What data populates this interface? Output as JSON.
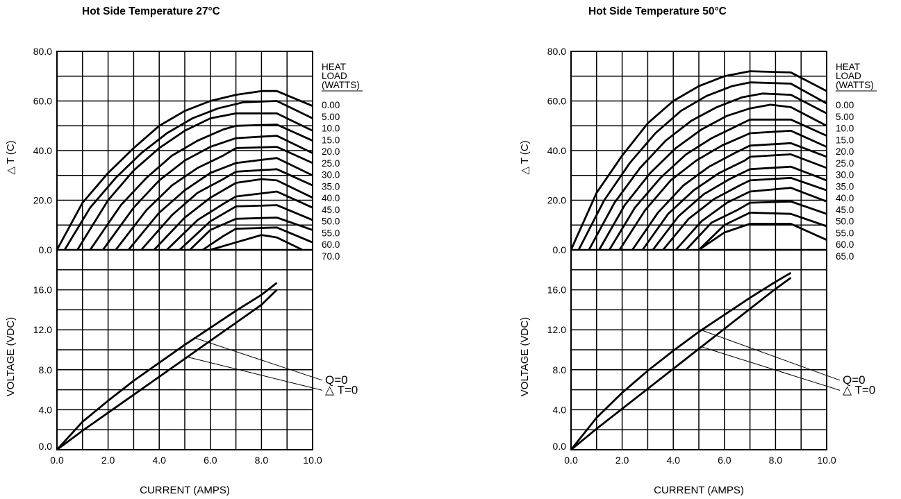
{
  "chart_data": [
    {
      "type": "line",
      "title": "Hot Side Temperature 27°C",
      "xlabel": "CURRENT (AMPS)",
      "x_ticks": [
        "0.0",
        "2.0",
        "4.0",
        "6.0",
        "8.0",
        "10.0"
      ],
      "xlim": [
        0,
        10
      ],
      "grid": true,
      "dt_panel": {
        "ylabel": "△ T (C)",
        "ylim": [
          0,
          80
        ],
        "y_ticks": [
          "0.0",
          "20.0",
          "40.0",
          "60.0",
          "80.0"
        ],
        "legend_header": [
          "HEAT",
          "LOAD",
          "(WATTS)"
        ],
        "series": [
          {
            "name": "0.00",
            "x": [
              0,
              1,
              2,
              3,
              4,
              5,
              6,
              7,
              8,
              8.6,
              10
            ],
            "y": [
              0,
              19,
              31,
              41,
              50,
              56,
              60,
              62.5,
              64,
              64,
              58
            ]
          },
          {
            "name": "5.00",
            "x": [
              0.3,
              1.3,
              2.3,
              3.3,
              4.3,
              5.3,
              6.3,
              7.3,
              8.6,
              10
            ],
            "y": [
              0,
              17,
              29,
              39,
              47,
              53,
              57,
              59.5,
              60,
              53
            ]
          },
          {
            "name": "10.0",
            "x": [
              0.8,
              2,
              3,
              4,
              5,
              6,
              7,
              8.6,
              10
            ],
            "y": [
              0,
              20,
              32,
              41,
              48,
              53,
              55,
              55,
              48
            ]
          },
          {
            "name": "15.0",
            "x": [
              1.3,
              2.5,
              3.5,
              4.5,
              5.5,
              6.5,
              7,
              8.6,
              10
            ],
            "y": [
              0,
              18,
              29,
              38,
              44,
              48.5,
              50,
              50.5,
              44
            ]
          },
          {
            "name": "20.0",
            "x": [
              1.8,
              3,
              4,
              5,
              6,
              7,
              8.6,
              10
            ],
            "y": [
              0,
              17,
              28,
              36,
              41.5,
              45,
              46,
              39
            ]
          },
          {
            "name": "25.0",
            "x": [
              2.3,
              3.5,
              4.5,
              5.5,
              6.5,
              7,
              8.6,
              10
            ],
            "y": [
              0,
              16,
              26,
              33,
              38,
              41,
              41.5,
              35
            ]
          },
          {
            "name": "30.0",
            "x": [
              2.8,
              4,
              5,
              6,
              7,
              8.6,
              10
            ],
            "y": [
              0,
              15,
              24,
              31,
              35,
              37,
              30
            ]
          },
          {
            "name": "35.0",
            "x": [
              3.3,
              4.5,
              5.5,
              6.5,
              7,
              8.6,
              10
            ],
            "y": [
              0,
              14,
              23,
              28.5,
              31.5,
              32.5,
              26
            ]
          },
          {
            "name": "40.0",
            "x": [
              3.8,
              5,
              6,
              7,
              8,
              8.6,
              10
            ],
            "y": [
              0,
              13,
              21,
              27,
              28.5,
              28,
              21
            ]
          },
          {
            "name": "45.0",
            "x": [
              4.3,
              5.5,
              6.5,
              7,
              8.6,
              10
            ],
            "y": [
              0,
              12,
              18.5,
              21.5,
              23.5,
              17
            ]
          },
          {
            "name": "50.0",
            "x": [
              4.8,
              6,
              7,
              8.6,
              10
            ],
            "y": [
              0,
              11.5,
              17.5,
              18,
              12
            ]
          },
          {
            "name": "55.0",
            "x": [
              5.2,
              6,
              7,
              8.6,
              10
            ],
            "y": [
              0,
              8,
              12.5,
              13,
              8
            ]
          },
          {
            "name": "60.0",
            "x": [
              5.7,
              6.5,
              7,
              8.6,
              10
            ],
            "y": [
              0,
              5.5,
              8.5,
              9,
              3
            ]
          },
          {
            "name": "70.0",
            "x": [
              6,
              7,
              8,
              8.6,
              9.6
            ],
            "y": [
              0,
              3,
              6,
              5,
              0
            ]
          }
        ]
      },
      "v_panel": {
        "ylabel": "VOLTAGE (VDC)",
        "ylim": [
          0,
          20
        ],
        "y_ticks": [
          "0.0",
          "4.0",
          "8.0",
          "12.0",
          "16.0"
        ],
        "series": [
          {
            "name": "Q=0",
            "x": [
              0,
              1,
              2,
              3,
              4,
              5,
              6,
              7,
              8,
              8.6
            ],
            "y": [
              0,
              2.8,
              4.9,
              6.9,
              8.7,
              10.5,
              12.2,
              13.9,
              15.5,
              16.7
            ]
          },
          {
            "name": "△ T=0",
            "x": [
              0,
              1,
              2,
              3,
              4,
              5,
              6,
              7,
              8,
              8.6
            ],
            "y": [
              0,
              1.9,
              3.7,
              5.5,
              7.3,
              9.1,
              10.9,
              12.7,
              14.5,
              16
            ]
          }
        ],
        "labels": [
          "Q=0",
          "△ T=0"
        ],
        "label_anchor_x": [
          5.4,
          5.1
        ]
      }
    },
    {
      "type": "line",
      "title": "Hot Side Temperature 50°C",
      "xlabel": "CURRENT (AMPS)",
      "x_ticks": [
        "0.0",
        "2.0",
        "4.0",
        "6.0",
        "8.0",
        "10.0"
      ],
      "xlim": [
        0,
        10
      ],
      "grid": true,
      "dt_panel": {
        "ylabel": "△ T (C)",
        "ylim": [
          0,
          80
        ],
        "y_ticks": [
          "0.0",
          "20.0",
          "40.0",
          "60.0",
          "80.0"
        ],
        "legend_header": [
          "HEAT",
          "LOAD",
          "(WATTS)"
        ],
        "series": [
          {
            "name": "0.00",
            "x": [
              0,
              1,
              2,
              3,
              4,
              5,
              6,
              7,
              8.6,
              10
            ],
            "y": [
              0,
              23,
              38,
              51,
              60,
              66,
              70,
              72,
              71.5,
              64
            ]
          },
          {
            "name": "5.00",
            "x": [
              0.3,
              1.3,
              2.3,
              3.3,
              4.3,
              5.3,
              6.3,
              7,
              8.6,
              10
            ],
            "y": [
              0,
              20,
              35,
              47,
              56,
              62,
              66,
              67.5,
              67,
              59
            ]
          },
          {
            "name": "10.0",
            "x": [
              0.7,
              1.7,
              2.7,
              3.7,
              4.7,
              5.7,
              6.7,
              7.5,
              8.6,
              10
            ],
            "y": [
              0,
              19,
              33,
              44,
              52,
              57.5,
              61.5,
              63,
              62.5,
              55
            ]
          },
          {
            "name": "15.0",
            "x": [
              1.1,
              2.1,
              3.1,
              4.1,
              5.1,
              6.1,
              7,
              7.8,
              8.6,
              10
            ],
            "y": [
              0,
              18,
              31,
              41,
              48.5,
              54,
              57,
              58.5,
              57.5,
              50
            ]
          },
          {
            "name": "20.0",
            "x": [
              1.5,
              2.5,
              3.5,
              4.5,
              5.5,
              6.5,
              7,
              8.6,
              10
            ],
            "y": [
              0,
              17,
              29,
              38.5,
              45,
              50,
              52.5,
              52.5,
              46
            ]
          },
          {
            "name": "25.0",
            "x": [
              1.9,
              2.9,
              3.9,
              4.9,
              5.9,
              7,
              8.6,
              10
            ],
            "y": [
              0,
              16,
              28,
              36,
              42,
              47,
              48,
              41.5
            ]
          },
          {
            "name": "30.0",
            "x": [
              2.4,
              3.4,
              4.4,
              5.4,
              6.4,
              7,
              8.6,
              10
            ],
            "y": [
              0,
              15,
              26,
              33.5,
              39,
              42,
              43,
              37.5
            ]
          },
          {
            "name": "35.0",
            "x": [
              2.8,
              3.8,
              4.8,
              5.8,
              6.8,
              7,
              8.6,
              10
            ],
            "y": [
              0,
              14.5,
              24,
              31,
              36,
              37.5,
              38.5,
              33
            ]
          },
          {
            "name": "40.0",
            "x": [
              3.2,
              4.2,
              5.2,
              6.2,
              7,
              8.6,
              10
            ],
            "y": [
              0,
              13.5,
              22.5,
              28.5,
              32.5,
              33.5,
              28
            ]
          },
          {
            "name": "45.0",
            "x": [
              3.6,
              4.6,
              5.6,
              6.6,
              7,
              8.6,
              10
            ],
            "y": [
              0,
              12.5,
              20.5,
              26,
              28,
              29,
              24
            ]
          },
          {
            "name": "50.0",
            "x": [
              4.1,
              5.1,
              6.1,
              7,
              8.6,
              10
            ],
            "y": [
              0,
              11.5,
              19,
              23.5,
              25,
              19.5
            ]
          },
          {
            "name": "55.0",
            "x": [
              4.5,
              5.5,
              6.5,
              7,
              8.6,
              10
            ],
            "y": [
              0,
              11,
              16,
              19,
              19.5,
              14.5
            ]
          },
          {
            "name": "60.0",
            "x": [
              5,
              6,
              7,
              8.6,
              10
            ],
            "y": [
              0,
              10,
              15,
              14.5,
              9.5
            ]
          },
          {
            "name": "65.0",
            "x": [
              5,
              6,
              7,
              8.6,
              10
            ],
            "y": [
              0,
              7,
              10.5,
              10.5,
              4
            ]
          }
        ]
      },
      "v_panel": {
        "ylabel": "VOLTAGE (VDC)",
        "ylim": [
          0,
          20
        ],
        "y_ticks": [
          "0.0",
          "4.0",
          "8.0",
          "12.0",
          "16.0"
        ],
        "series": [
          {
            "name": "Q=0",
            "x": [
              0,
              1,
              2,
              3,
              4,
              5,
              6,
              7,
              8,
              8.6
            ],
            "y": [
              0,
              3.2,
              5.7,
              7.9,
              9.9,
              11.8,
              13.5,
              15.2,
              16.8,
              17.7
            ]
          },
          {
            "name": "△ T=0",
            "x": [
              0,
              1,
              2,
              3,
              4,
              5,
              6,
              7,
              8,
              8.6
            ],
            "y": [
              0,
              2.1,
              4.1,
              6.1,
              8.1,
              10.1,
              12.1,
              14.1,
              16.1,
              17.2
            ]
          }
        ],
        "labels": [
          "Q=0",
          "△ T=0"
        ],
        "label_anchor_x": [
          5.1,
          5.1
        ]
      }
    }
  ]
}
